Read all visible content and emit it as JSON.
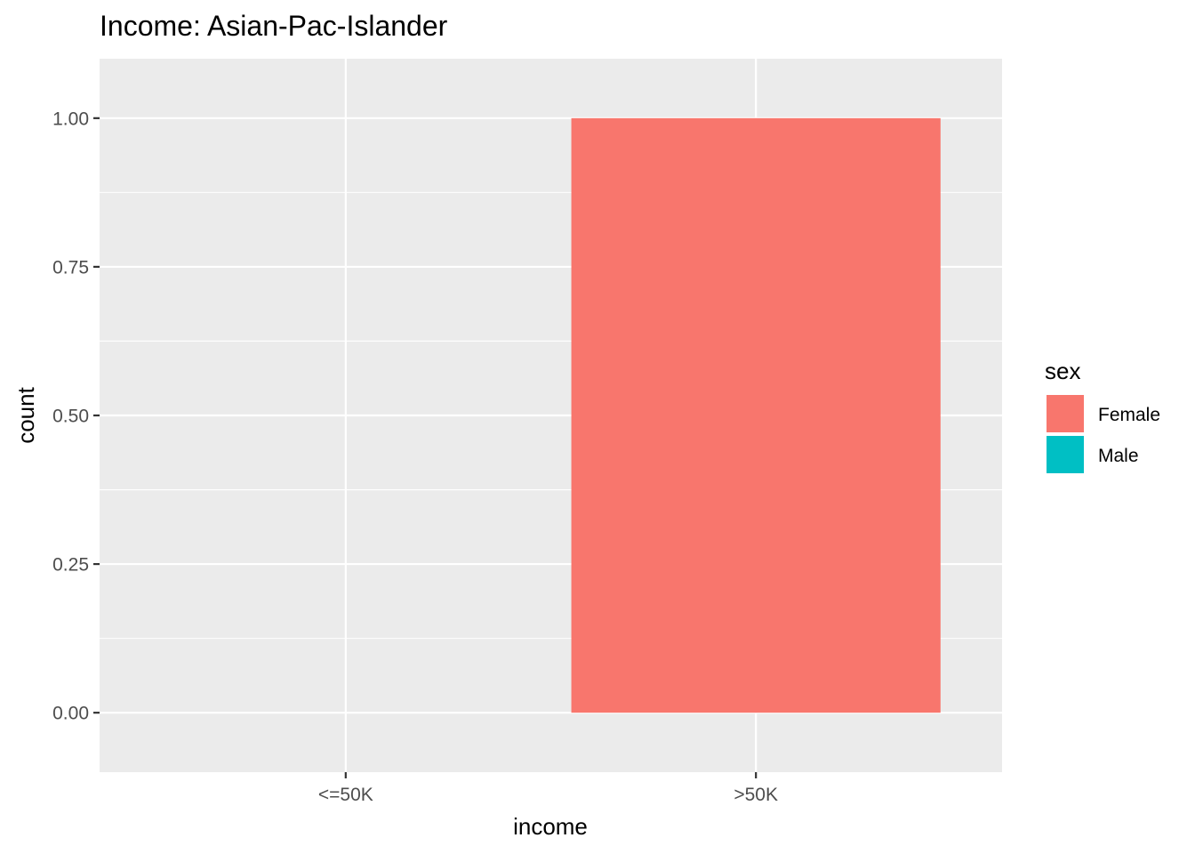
{
  "chart_data": {
    "type": "bar",
    "title": "Income: Asian-Pac-Islander",
    "xlabel": "income",
    "ylabel": "count",
    "categories": [
      "<=50K",
      ">50K"
    ],
    "series": [
      {
        "name": "Female",
        "values": [
          0,
          1
        ]
      },
      {
        "name": "Male",
        "values": [
          0,
          0
        ]
      }
    ],
    "ylim": [
      -0.1,
      1.1
    ],
    "yticks": [
      0,
      0.25,
      0.5,
      0.75,
      1
    ],
    "ytick_labels": [
      "0.00",
      "0.25",
      "0.50",
      "0.75",
      "1.00"
    ],
    "grid": true,
    "legend": {
      "title": "sex",
      "placement": "right",
      "entries": [
        {
          "label": "Female",
          "color": "#F8766D"
        },
        {
          "label": "Male",
          "color": "#00BFC4"
        }
      ]
    },
    "colors": {
      "panel_background": "#EBEBEB",
      "grid": "#FFFFFF",
      "Female": "#F8766D",
      "Male": "#00BFC4"
    }
  }
}
